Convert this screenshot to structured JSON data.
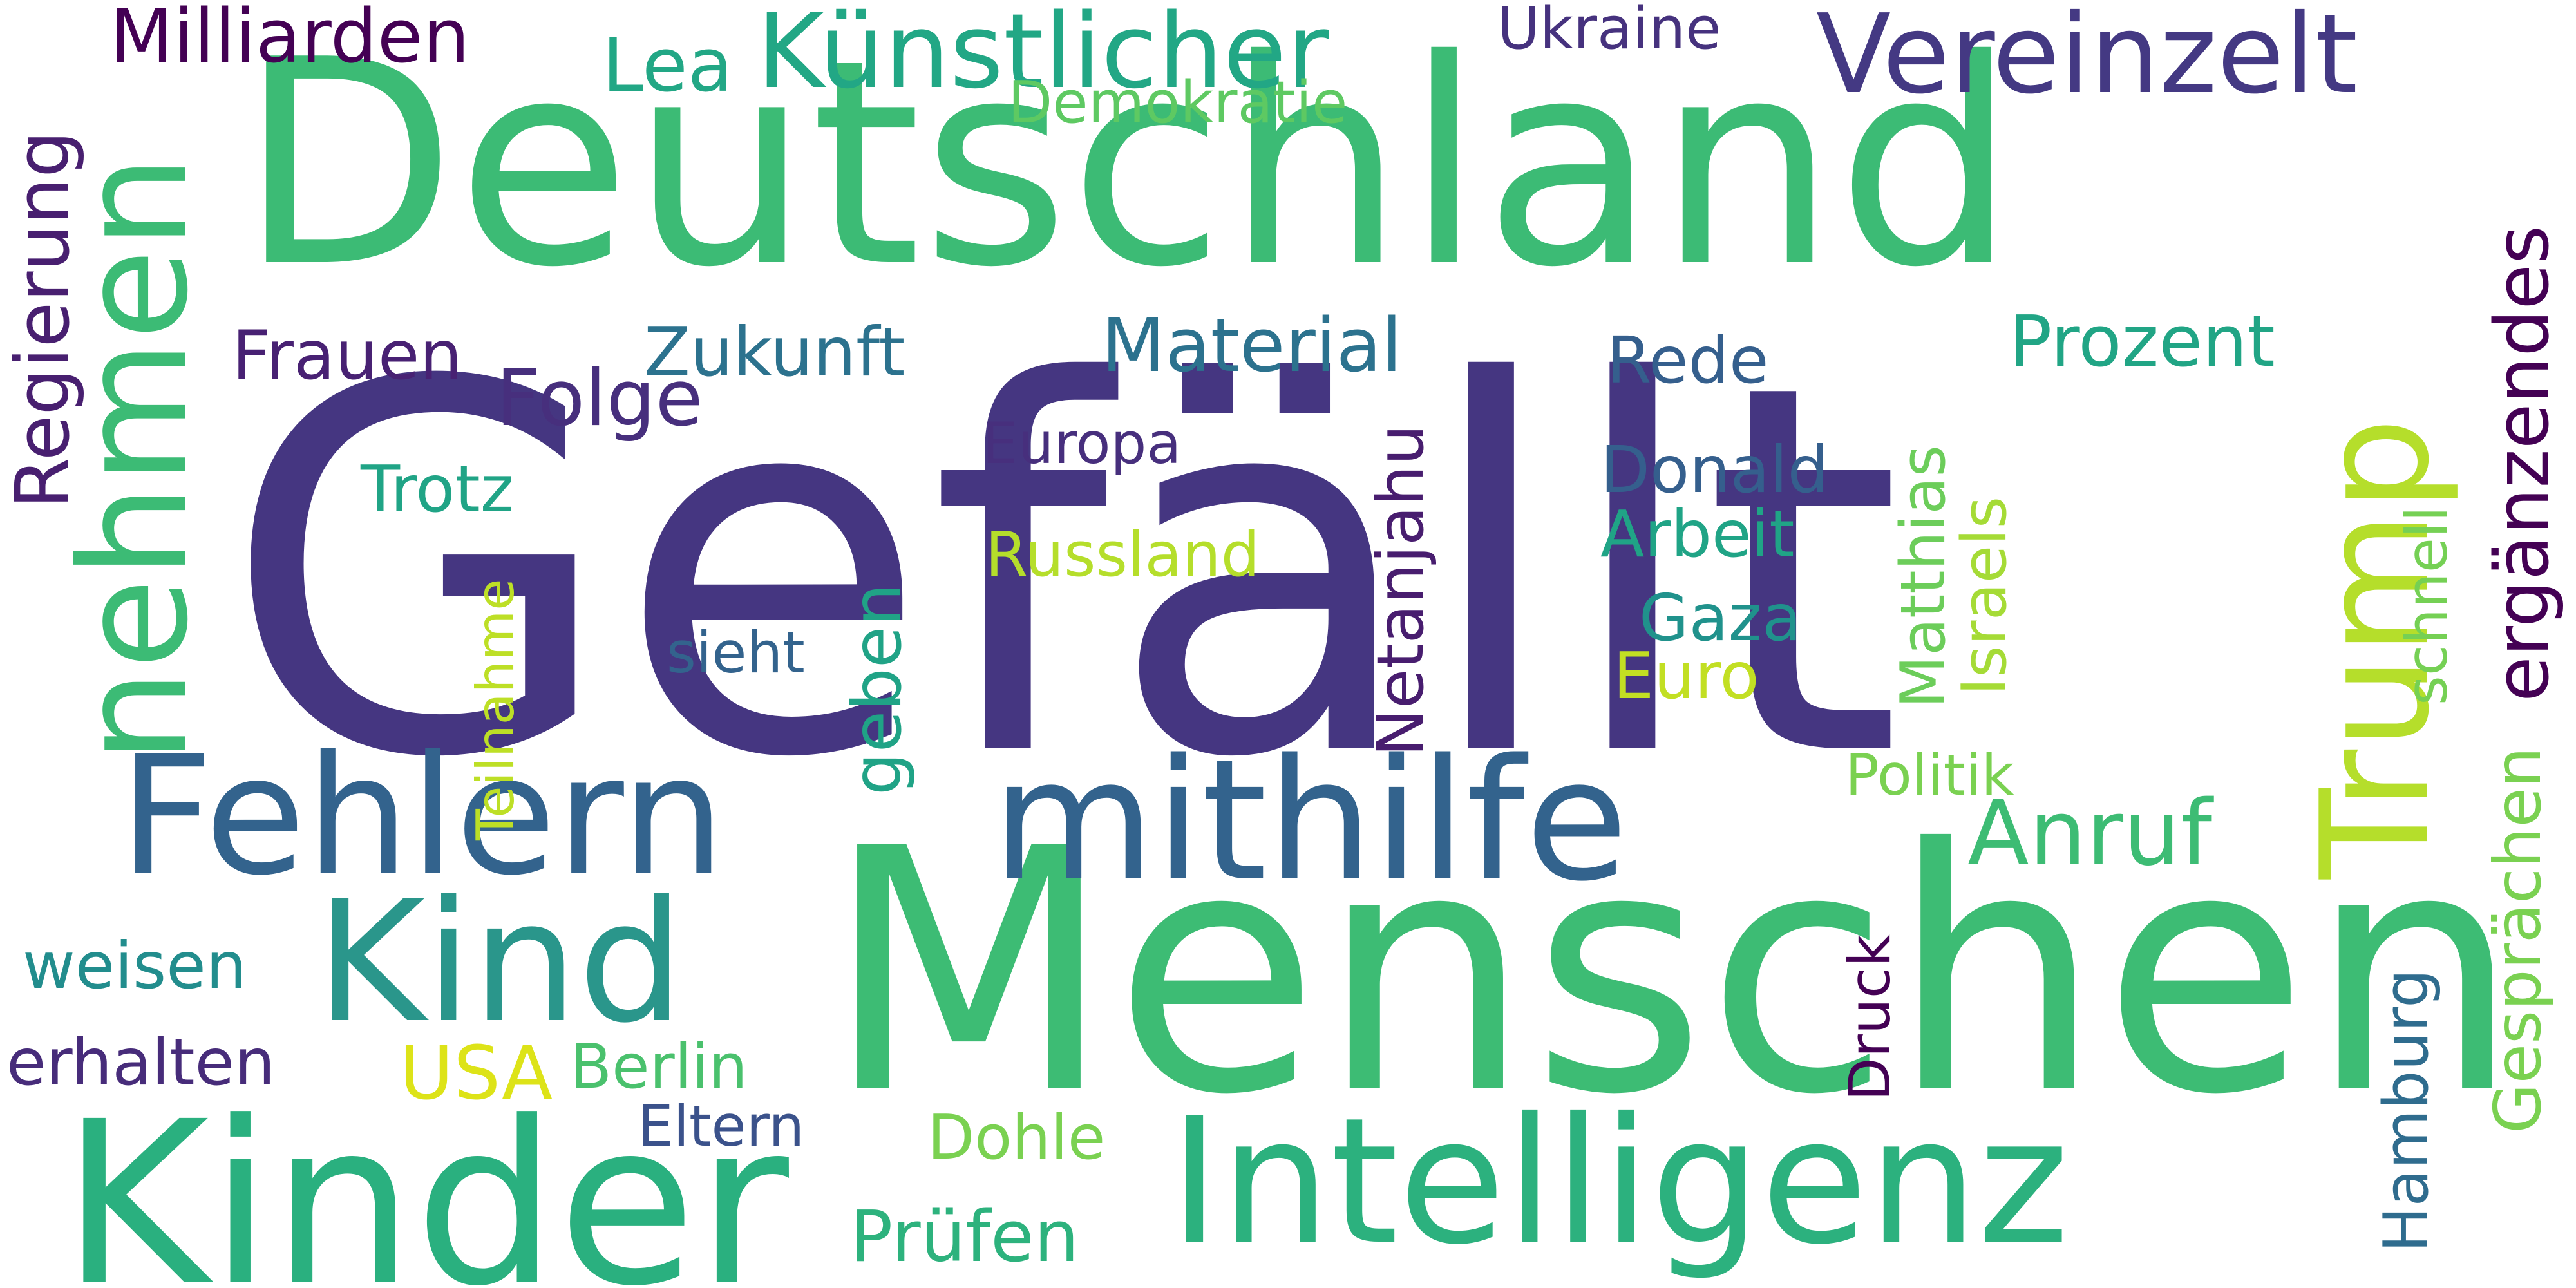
{
  "words": [
    {
      "text": "Gefällt",
      "color": "#453681"
    },
    {
      "text": "Menschen",
      "color": "#3dbc74"
    },
    {
      "text": "Deutschland",
      "color": "#3cbb75"
    },
    {
      "text": "Kinder",
      "color": "#2ab07f"
    },
    {
      "text": "Intelligenz",
      "color": "#2cb17e"
    },
    {
      "text": "mithilfe",
      "color": "#33638d"
    },
    {
      "text": "Fehlern",
      "color": "#33638d"
    },
    {
      "text": "Kind",
      "color": "#2a968b"
    },
    {
      "text": "nehmen",
      "color": "#3cbb75"
    },
    {
      "text": "Trump",
      "color": "#b5de2b"
    },
    {
      "text": "Vereinzelt",
      "color": "#443983"
    },
    {
      "text": "Künstlicher",
      "color": "#22a785"
    },
    {
      "text": "Milliarden",
      "color": "#440154"
    },
    {
      "text": "Lea",
      "color": "#22a785"
    },
    {
      "text": "Ukraine",
      "color": "#46327e"
    },
    {
      "text": "Demokratie",
      "color": "#5ec962"
    },
    {
      "text": "Regierung",
      "color": "#481f70"
    },
    {
      "text": "Frauen",
      "color": "#482173"
    },
    {
      "text": "Folge",
      "color": "#472f7d"
    },
    {
      "text": "Zukunft",
      "color": "#2c728e"
    },
    {
      "text": "Material",
      "color": "#2c728e"
    },
    {
      "text": "Rede",
      "color": "#355f8d"
    },
    {
      "text": "Prozent",
      "color": "#21a585"
    },
    {
      "text": "ergänzendes",
      "color": "#440154"
    },
    {
      "text": "Europa",
      "color": "#472f7d"
    },
    {
      "text": "Trotz",
      "color": "#20a486"
    },
    {
      "text": "Donald",
      "color": "#355f8d"
    },
    {
      "text": "Arbeit",
      "color": "#20a486"
    },
    {
      "text": "Russland",
      "color": "#b5de2b"
    },
    {
      "text": "Gaza",
      "color": "#20928c"
    },
    {
      "text": "Euro",
      "color": "#c2df23"
    },
    {
      "text": "sieht",
      "color": "#33638d"
    },
    {
      "text": "Politik",
      "color": "#7ad151"
    },
    {
      "text": "Anruf",
      "color": "#3dbc74"
    },
    {
      "text": "weisen",
      "color": "#228d8d"
    },
    {
      "text": "erhalten",
      "color": "#472c7a"
    },
    {
      "text": "USA",
      "color": "#dde318"
    },
    {
      "text": "Berlin",
      "color": "#4ac16d"
    },
    {
      "text": "Eltern",
      "color": "#3b528b"
    },
    {
      "text": "Dohle",
      "color": "#7ad151"
    },
    {
      "text": "Prüfen",
      "color": "#2db27d"
    },
    {
      "text": "Teilnahme",
      "color": "#bddf26"
    },
    {
      "text": "geben",
      "color": "#20a386"
    },
    {
      "text": "Netanjahu",
      "color": "#481d6f"
    },
    {
      "text": "Matthias",
      "color": "#6ccd5a"
    },
    {
      "text": "Israels",
      "color": "#a5db36"
    },
    {
      "text": "schnell",
      "color": "#75d054"
    },
    {
      "text": "Druck",
      "color": "#440154"
    },
    {
      "text": "Hamburg",
      "color": "#2f6c8e"
    },
    {
      "text": "Gesprächen",
      "color": "#7ad151"
    }
  ]
}
